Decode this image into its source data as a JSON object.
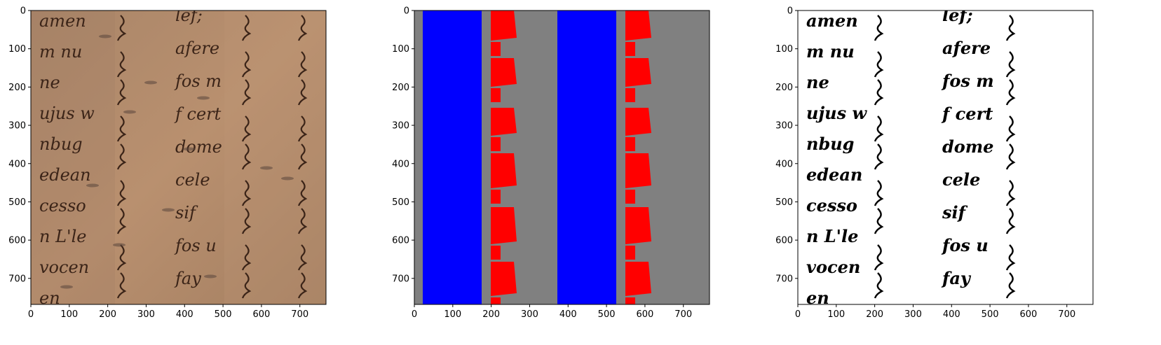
{
  "figure": {
    "panels": [
      {
        "id": "manuscript",
        "content": "handwritten manuscript fragment (photo)",
        "background_color": "#b08a6a",
        "ink_color": "#3b2418"
      },
      {
        "id": "segmentation",
        "content": "segmentation mask",
        "colors": {
          "background": "#808080",
          "text_column": "#0000ff",
          "margin_marks": "#ff0000"
        }
      },
      {
        "id": "binarized",
        "content": "binarized handwriting",
        "colors": {
          "background": "#ffffff",
          "ink": "#000000"
        }
      }
    ],
    "x_ticks": [
      "0",
      "100",
      "200",
      "300",
      "400",
      "500",
      "600",
      "700"
    ],
    "y_ticks": [
      "0",
      "100",
      "200",
      "300",
      "400",
      "500",
      "600",
      "700"
    ],
    "x_range": [
      0,
      768
    ],
    "y_range": [
      0,
      768
    ],
    "visible_text": {
      "left_column": [
        "amen",
        "m nu",
        "ne",
        "ujus w",
        "nbug",
        "edean",
        "cesso",
        "n L'le",
        "vocen",
        "en"
      ],
      "right_column": [
        "lef;",
        "afere",
        "fos m",
        "f cert",
        "dome",
        "cele",
        "sif",
        "fos u",
        "fay"
      ]
    }
  }
}
